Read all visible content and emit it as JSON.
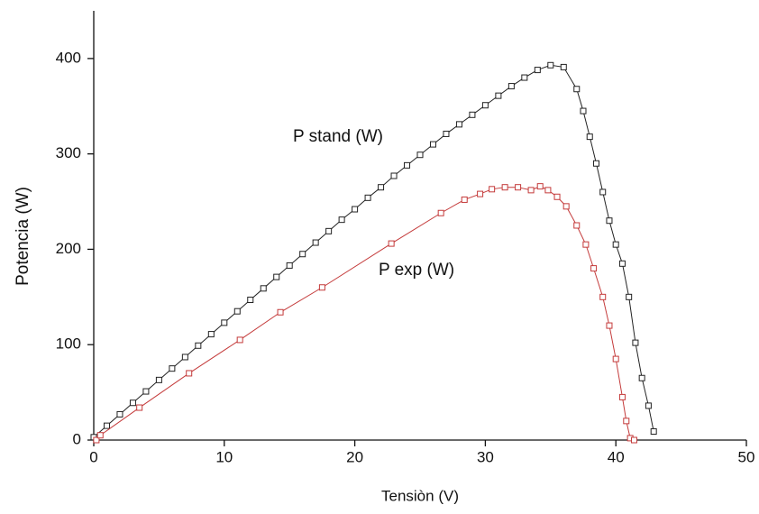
{
  "chart_data": {
    "type": "line",
    "x_label": "Tensiòn  (V)",
    "y_label": "Potencia (W)",
    "annotations": [
      "P stand  (W)",
      "P exp  (W)"
    ],
    "xlim": [
      0,
      50
    ],
    "xticks": [
      0,
      10,
      20,
      30,
      40,
      50
    ],
    "ylim": [
      0,
      450
    ],
    "yticks": [
      0,
      100,
      200,
      300,
      400
    ],
    "grid": false,
    "marker": "square",
    "series": [
      {
        "name": "P stand  (W)",
        "color": "#222222",
        "x": [
          0,
          1,
          2,
          3,
          4,
          5,
          6,
          7,
          8,
          9,
          10,
          11,
          12,
          13,
          14,
          15,
          16,
          17,
          18,
          19,
          20,
          21,
          22,
          23,
          24,
          25,
          26,
          27,
          28,
          29,
          30,
          31,
          32,
          33,
          34,
          35,
          36,
          37,
          37.5,
          38,
          38.5,
          39,
          39.5,
          40,
          40.5,
          41,
          41.5,
          42,
          42.5,
          42.9
        ],
        "values": [
          3,
          15,
          27,
          39,
          51,
          63,
          75,
          87,
          99,
          111,
          123,
          135,
          147,
          159,
          171,
          183,
          195,
          207,
          219,
          231,
          242,
          254,
          265,
          277,
          288,
          299,
          310,
          321,
          331,
          341,
          351,
          361,
          371,
          380,
          388,
          393,
          391,
          368,
          345,
          318,
          290,
          260,
          230,
          205,
          185,
          150,
          102,
          65,
          36,
          9
        ]
      },
      {
        "name": "P exp  (W)",
        "color": "#c43a3a",
        "x": [
          0.2,
          0.5,
          3.5,
          7.3,
          11.2,
          14.3,
          17.5,
          22.8,
          26.6,
          28.4,
          29.6,
          30.5,
          31.5,
          32.5,
          33.5,
          34.2,
          34.8,
          35.5,
          36.2,
          37,
          37.7,
          38.3,
          39,
          39.5,
          40,
          40.5,
          40.8,
          41.1,
          41.4
        ],
        "values": [
          0,
          5,
          34,
          70,
          105,
          134,
          160,
          206,
          238,
          252,
          258,
          263,
          265,
          265,
          262,
          266,
          262,
          255,
          245,
          225,
          205,
          180,
          150,
          120,
          85,
          45,
          20,
          2,
          0
        ]
      }
    ]
  }
}
